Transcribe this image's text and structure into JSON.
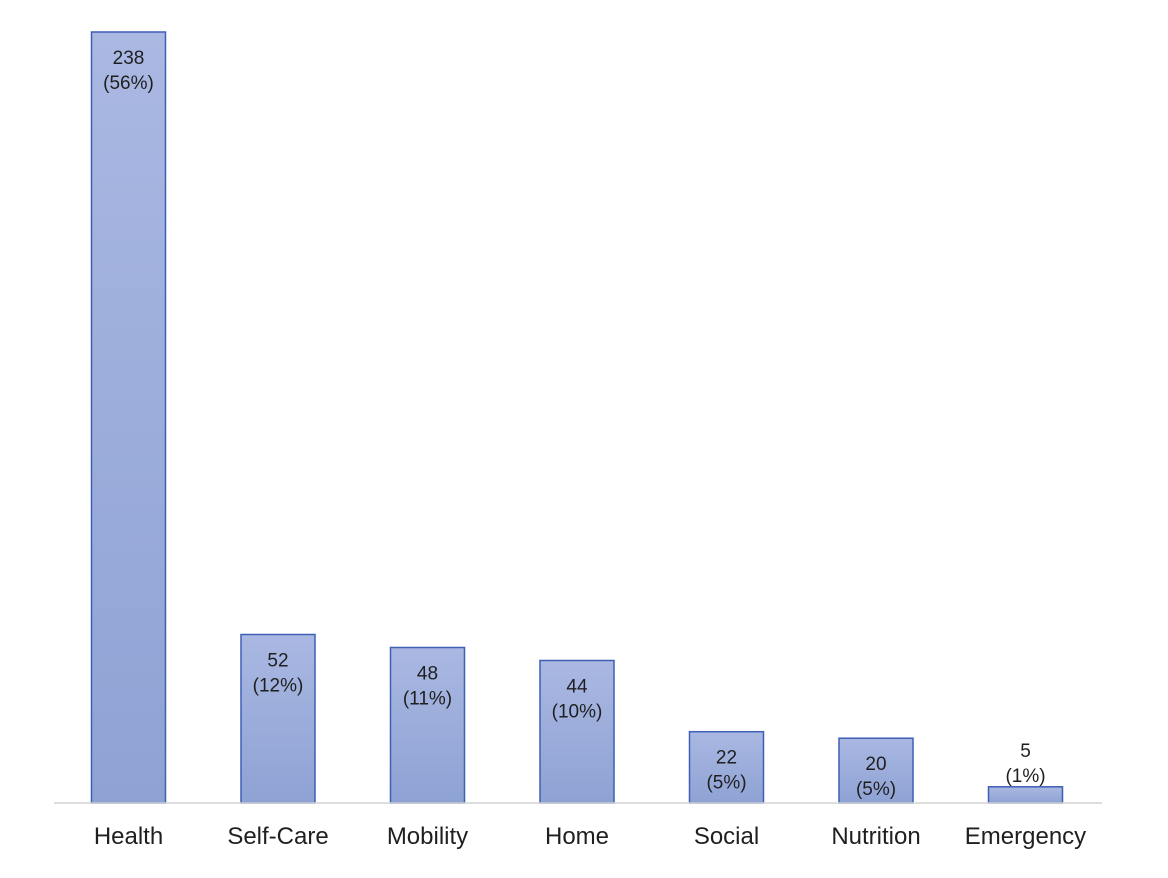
{
  "chart_data": {
    "type": "bar",
    "title": "",
    "xlabel": "",
    "ylabel": "",
    "categories": [
      "Health",
      "Self-Care",
      "Mobility",
      "Home",
      "Social",
      "Nutrition",
      "Emergency"
    ],
    "values": [
      238,
      52,
      48,
      44,
      22,
      20,
      5
    ],
    "value_labels": [
      "238",
      "52",
      "48",
      "44",
      "22",
      "20",
      "5"
    ],
    "percent_labels": [
      "(56%)",
      "(12%)",
      "(11%)",
      "(10%)",
      "(5%)",
      "(5%)",
      "(1%)"
    ],
    "ylim": [
      0,
      238
    ],
    "grid": false,
    "legend": "none",
    "colors": {
      "bar_fill_top": "#aab8e2",
      "bar_fill_bottom": "#8ea2d4",
      "bar_stroke": "#3f5fb5",
      "axis": "#d4d4d4",
      "text": "#1f1f1f"
    }
  }
}
